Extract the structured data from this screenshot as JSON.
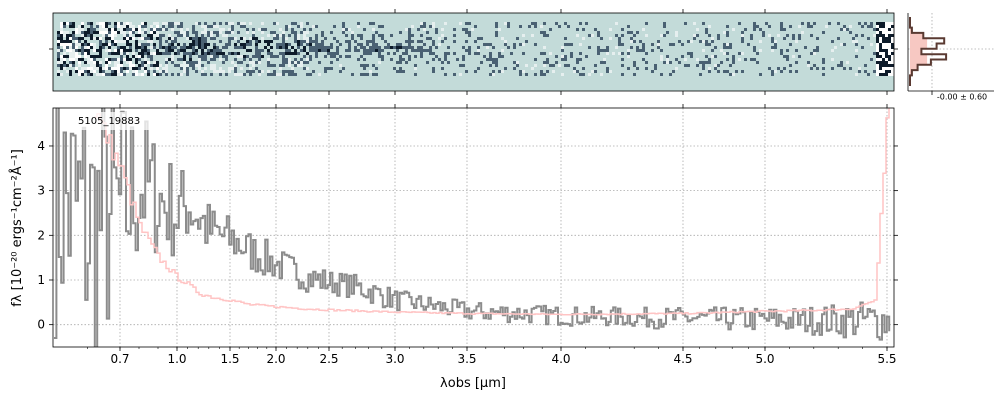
{
  "chart_data": [
    {
      "panel": "2d-spectrum",
      "type": "heatmap",
      "colors": {
        "background": "#c3dbd9",
        "dark": "#0d1b2a",
        "light": "#ffffff"
      },
      "note_rows": "cross-dispersion rows, dark trace near center"
    },
    {
      "panel": "cross-dispersion-profile",
      "type": "line",
      "annotation": "-0.00 ± 0.60",
      "profile_y": [
        0.0,
        0.0,
        0.05,
        0.35,
        0.9,
        0.7,
        0.3,
        0.95,
        0.55,
        0.2,
        0.05,
        0.0,
        0.0
      ],
      "colors": {
        "profile": "#5a3a32",
        "fill": "#f7c8c2"
      }
    },
    {
      "panel": "1d-spectrum",
      "type": "line",
      "object_label": "5105_19883",
      "xlabel": "λobs [μm]",
      "ylabel": "fλ [10⁻²⁰ ergs⁻¹cm⁻²Å⁻¹]",
      "x_ticks": [
        "0.7",
        "1.0",
        "1.5",
        "2.0",
        "2.5",
        "3.0",
        "3.5",
        "4.0",
        "4.5",
        "5.0",
        "5.5"
      ],
      "x_tick_values": [
        0.7,
        1.0,
        1.5,
        2.0,
        2.5,
        3.0,
        3.5,
        4.0,
        4.5,
        5.0,
        5.5
      ],
      "y_ticks": [
        "0",
        "1",
        "2",
        "3",
        "4"
      ],
      "y_tick_values": [
        0,
        1,
        2,
        3,
        4
      ],
      "ylim": [
        -0.5,
        4.85
      ],
      "grid": true,
      "colors": {
        "flux": "#8c8c8c",
        "error": "#ffc4c4",
        "grid": "#aaaaaa"
      },
      "series": [
        {
          "role": "flux",
          "x": [
            0.5,
            0.6,
            0.7,
            0.8,
            0.9,
            1.0,
            1.1,
            1.2,
            1.3,
            1.4,
            1.5,
            1.6,
            1.7,
            1.8,
            1.9,
            2.0,
            2.1,
            2.2,
            2.3,
            2.4,
            2.5,
            2.6,
            2.7,
            2.8,
            2.9,
            3.0,
            3.1,
            3.2,
            3.3,
            3.4,
            3.5,
            3.6,
            3.7,
            3.8,
            3.9,
            4.0,
            4.1,
            4.2,
            4.3,
            4.4,
            4.5,
            4.6,
            4.7,
            4.8,
            4.9,
            5.0,
            5.1,
            5.2,
            5.3,
            5.4,
            5.5
          ],
          "y": [
            3.0,
            2.2,
            2.5,
            3.2,
            2.8,
            2.5,
            2.7,
            2.4,
            2.1,
            2.0,
            1.9,
            1.8,
            1.65,
            1.55,
            1.45,
            1.35,
            1.25,
            1.15,
            1.05,
            1.0,
            0.95,
            0.9,
            0.85,
            0.75,
            0.65,
            0.55,
            0.5,
            0.45,
            0.4,
            0.35,
            0.3,
            0.28,
            0.27,
            0.25,
            0.22,
            0.2,
            0.18,
            0.18,
            0.16,
            0.15,
            0.15,
            0.14,
            0.13,
            0.12,
            0.12,
            0.12,
            0.1,
            0.1,
            0.1,
            0.1,
            0.1
          ],
          "noise": [
            3.0,
            3.0,
            2.5,
            1.7,
            1.2,
            1.0,
            0.8,
            0.7,
            0.6,
            0.55,
            0.5,
            0.45,
            0.45,
            0.4,
            0.4,
            0.35,
            0.35,
            0.3,
            0.3,
            0.3,
            0.25,
            0.25,
            0.25,
            0.25,
            0.25,
            0.22,
            0.2,
            0.2,
            0.2,
            0.2,
            0.2,
            0.2,
            0.2,
            0.2,
            0.2,
            0.2,
            0.2,
            0.2,
            0.2,
            0.22,
            0.22,
            0.22,
            0.24,
            0.25,
            0.25,
            0.26,
            0.28,
            0.3,
            0.35,
            0.4,
            0.45
          ]
        },
        {
          "role": "error",
          "x": [
            0.62,
            0.7,
            0.8,
            0.9,
            1.0,
            1.1,
            1.2,
            1.35,
            1.5,
            1.7,
            2.0,
            2.3,
            2.6,
            3.0,
            3.5,
            4.0,
            4.5,
            4.8,
            5.0,
            5.2,
            5.35,
            5.45,
            5.5
          ],
          "y": [
            4.8,
            3.5,
            2.2,
            1.5,
            1.05,
            0.9,
            0.7,
            0.6,
            0.55,
            0.45,
            0.4,
            0.35,
            0.32,
            0.28,
            0.25,
            0.23,
            0.25,
            0.28,
            0.3,
            0.32,
            0.35,
            0.55,
            4.8
          ]
        }
      ]
    }
  ]
}
